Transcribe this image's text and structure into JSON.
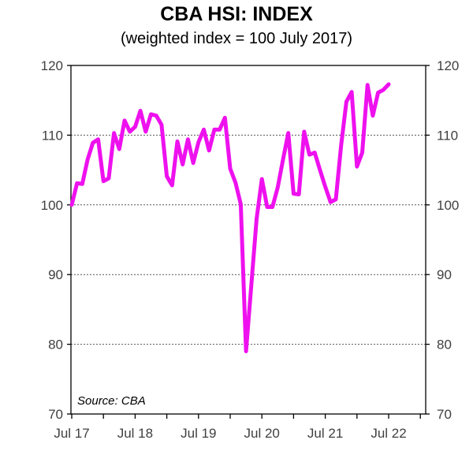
{
  "chart_data": {
    "type": "line",
    "title": "CBA HSI: INDEX",
    "subtitle": "(weighted index = 100 July 2017)",
    "xlabel": "",
    "ylabel": "",
    "source": "Source: CBA",
    "ylim": [
      70,
      120
    ],
    "yticks": [
      "70",
      "80",
      "90",
      "100",
      "110",
      "120"
    ],
    "xticks": [
      "Jul 17",
      "Jul 18",
      "Jul 19",
      "Jul 20",
      "Jul 21",
      "Jul 22"
    ],
    "grid": "horizontal dotted",
    "legend": "none",
    "dual_y_axis": true,
    "series": [
      {
        "color": "#ee11ee",
        "x_unit": "months since Jul 2017",
        "x": [
          0,
          1,
          2,
          3,
          4,
          5,
          6,
          7,
          8,
          9,
          10,
          11,
          12,
          13,
          14,
          15,
          16,
          17,
          18,
          19,
          20,
          21,
          22,
          23,
          24,
          25,
          26,
          27,
          28,
          29,
          30,
          31,
          32,
          33,
          34,
          35,
          36,
          37,
          38,
          39,
          40,
          41,
          42,
          43,
          44,
          45,
          46,
          47,
          48,
          49,
          50,
          51,
          52,
          53,
          54,
          55,
          56,
          57,
          58,
          59,
          60
        ],
        "values": [
          100.0,
          103.1,
          103.0,
          106.5,
          108.9,
          109.4,
          103.4,
          103.8,
          110.3,
          108.0,
          112.1,
          110.5,
          111.2,
          113.5,
          110.5,
          113.0,
          112.8,
          111.5,
          104.1,
          102.8,
          109.1,
          105.8,
          109.4,
          106.0,
          109.0,
          110.8,
          107.8,
          110.8,
          110.8,
          112.5,
          105.2,
          103.2,
          100.1,
          79.0,
          88.5,
          98.0,
          103.7,
          99.7,
          99.7,
          102.5,
          106.5,
          110.3,
          101.6,
          101.5,
          110.5,
          107.2,
          107.5,
          105.0,
          102.6,
          100.4,
          100.8,
          108.5,
          114.8,
          116.2,
          105.5,
          107.5,
          117.2,
          112.8,
          116.1,
          116.5,
          117.3
        ]
      }
    ]
  }
}
